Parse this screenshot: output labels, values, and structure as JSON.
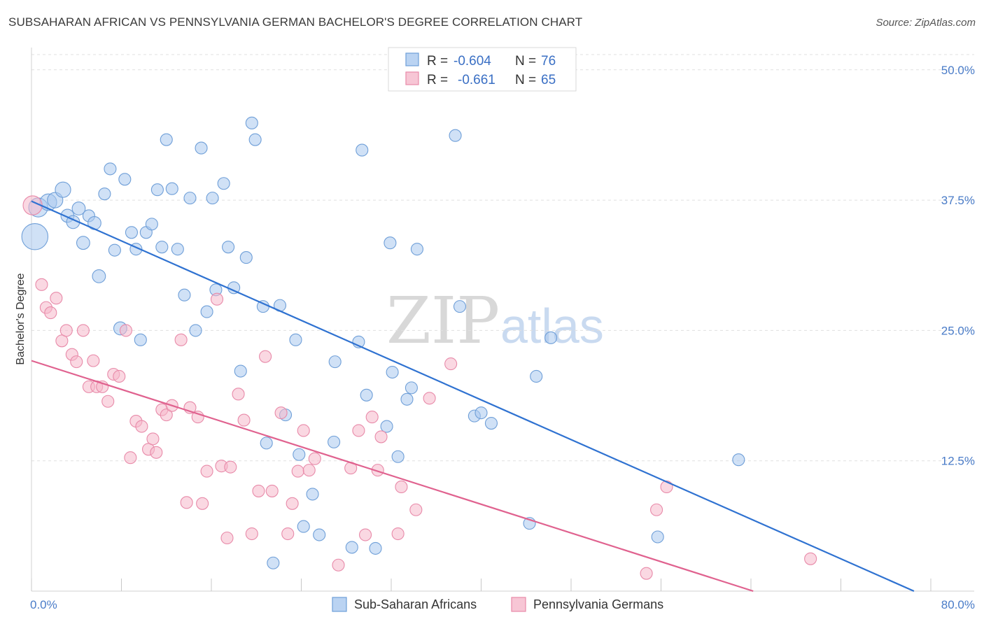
{
  "header": {
    "title": "SUBSAHARAN AFRICAN VS PENNSYLVANIA GERMAN BACHELOR'S DEGREE CORRELATION CHART",
    "source": "Source: ZipAtlas.com"
  },
  "watermark": {
    "zip": "ZIP",
    "atlas": "atlas"
  },
  "legend": {
    "r_label": "R =",
    "n_label": "N =",
    "entries": [
      {
        "r": "-0.604",
        "n": "76",
        "color": "#a9c8ef"
      },
      {
        "r": "-0.661",
        "n": "65",
        "color": "#f5b8cb"
      }
    ]
  },
  "bottom_legend": {
    "items": [
      {
        "label": "Sub-Saharan Africans",
        "color": "#a9c8ef"
      },
      {
        "label": "Pennsylvania Germans",
        "color": "#f5b8cb"
      }
    ]
  },
  "colors": {
    "blue_fill": "#a9c8ef",
    "blue_stroke": "#6f9fd8",
    "blue_line": "#2f72d1",
    "pink_fill": "#f5b8cb",
    "pink_stroke": "#e88aa9",
    "pink_line": "#e0628f",
    "grid": "#e0e0e0",
    "tick_label": "#4a7cc8"
  },
  "chart_data": {
    "type": "scatter",
    "title": "SUBSAHARAN AFRICAN VS PENNSYLVANIA GERMAN BACHELOR'S DEGREE CORRELATION CHART",
    "xlabel": "",
    "ylabel": "Bachelor's Degree",
    "xlim": [
      0,
      80
    ],
    "ylim": [
      0,
      52
    ],
    "x_tick_labels": [
      "0.0%",
      "80.0%"
    ],
    "y_ticks": [
      12.5,
      25.0,
      37.5,
      50.0
    ],
    "y_tick_labels": [
      "12.5%",
      "25.0%",
      "37.5%",
      "50.0%"
    ],
    "grid": true,
    "legend_position": "top-center",
    "series": [
      {
        "name": "Sub-Saharan Africans",
        "trend": {
          "x": [
            0,
            78.5
          ],
          "y": [
            37.4,
            0
          ]
        },
        "points": [
          {
            "x": 0.3,
            "y": 34.0,
            "s": 2.2
          },
          {
            "x": 0.6,
            "y": 36.8,
            "s": 1.6
          },
          {
            "x": 1.5,
            "y": 37.3,
            "s": 1.4
          },
          {
            "x": 2.1,
            "y": 37.5,
            "s": 1.3
          },
          {
            "x": 2.8,
            "y": 38.5,
            "s": 1.3
          },
          {
            "x": 3.2,
            "y": 36.0,
            "s": 1.1
          },
          {
            "x": 3.7,
            "y": 35.4,
            "s": 1.1
          },
          {
            "x": 4.2,
            "y": 36.7,
            "s": 1.1
          },
          {
            "x": 4.6,
            "y": 33.4,
            "s": 1.1
          },
          {
            "x": 5.1,
            "y": 36.0,
            "s": 1.0
          },
          {
            "x": 5.6,
            "y": 35.3,
            "s": 1.1
          },
          {
            "x": 6.0,
            "y": 30.2,
            "s": 1.1
          },
          {
            "x": 6.5,
            "y": 38.1,
            "s": 1.0
          },
          {
            "x": 7.0,
            "y": 40.5,
            "s": 1.0
          },
          {
            "x": 7.4,
            "y": 32.7,
            "s": 1.0
          },
          {
            "x": 7.9,
            "y": 25.2,
            "s": 1.1
          },
          {
            "x": 8.3,
            "y": 39.5,
            "s": 1.0
          },
          {
            "x": 8.9,
            "y": 34.4,
            "s": 1.0
          },
          {
            "x": 9.3,
            "y": 32.8,
            "s": 1.0
          },
          {
            "x": 9.7,
            "y": 24.1,
            "s": 1.0
          },
          {
            "x": 10.2,
            "y": 34.4,
            "s": 1.0
          },
          {
            "x": 10.7,
            "y": 35.2,
            "s": 1.0
          },
          {
            "x": 11.2,
            "y": 38.5,
            "s": 1.0
          },
          {
            "x": 11.6,
            "y": 33.0,
            "s": 1.0
          },
          {
            "x": 12.0,
            "y": 43.3,
            "s": 1.0
          },
          {
            "x": 12.5,
            "y": 38.6,
            "s": 1.0
          },
          {
            "x": 13.0,
            "y": 32.8,
            "s": 1.0
          },
          {
            "x": 13.6,
            "y": 28.4,
            "s": 1.0
          },
          {
            "x": 14.1,
            "y": 37.7,
            "s": 1.0
          },
          {
            "x": 14.6,
            "y": 25.0,
            "s": 1.0
          },
          {
            "x": 15.1,
            "y": 42.5,
            "s": 1.0
          },
          {
            "x": 15.6,
            "y": 26.8,
            "s": 1.0
          },
          {
            "x": 16.1,
            "y": 37.7,
            "s": 1.0
          },
          {
            "x": 16.4,
            "y": 28.9,
            "s": 1.0
          },
          {
            "x": 17.1,
            "y": 39.1,
            "s": 1.0
          },
          {
            "x": 17.5,
            "y": 33.0,
            "s": 1.0
          },
          {
            "x": 18.0,
            "y": 29.1,
            "s": 1.0
          },
          {
            "x": 18.6,
            "y": 21.1,
            "s": 1.0
          },
          {
            "x": 19.1,
            "y": 32.0,
            "s": 1.0
          },
          {
            "x": 19.6,
            "y": 44.9,
            "s": 1.0
          },
          {
            "x": 19.9,
            "y": 43.3,
            "s": 1.0
          },
          {
            "x": 20.6,
            "y": 27.3,
            "s": 1.0
          },
          {
            "x": 20.9,
            "y": 14.2,
            "s": 1.0
          },
          {
            "x": 21.5,
            "y": 2.7,
            "s": 1.0
          },
          {
            "x": 22.1,
            "y": 27.4,
            "s": 1.0
          },
          {
            "x": 22.6,
            "y": 16.9,
            "s": 1.0
          },
          {
            "x": 23.5,
            "y": 24.1,
            "s": 1.0
          },
          {
            "x": 23.8,
            "y": 13.1,
            "s": 1.0
          },
          {
            "x": 24.2,
            "y": 6.2,
            "s": 1.0
          },
          {
            "x": 25.0,
            "y": 9.3,
            "s": 1.0
          },
          {
            "x": 25.6,
            "y": 5.4,
            "s": 1.0
          },
          {
            "x": 26.9,
            "y": 14.3,
            "s": 1.0
          },
          {
            "x": 27.0,
            "y": 22.0,
            "s": 1.0
          },
          {
            "x": 28.5,
            "y": 4.2,
            "s": 1.0
          },
          {
            "x": 29.1,
            "y": 23.9,
            "s": 1.0
          },
          {
            "x": 29.4,
            "y": 42.3,
            "s": 1.0
          },
          {
            "x": 29.8,
            "y": 18.8,
            "s": 1.0
          },
          {
            "x": 30.6,
            "y": 4.1,
            "s": 1.0
          },
          {
            "x": 31.6,
            "y": 15.8,
            "s": 1.0
          },
          {
            "x": 31.9,
            "y": 33.4,
            "s": 1.0
          },
          {
            "x": 32.1,
            "y": 21.0,
            "s": 1.0
          },
          {
            "x": 32.6,
            "y": 12.9,
            "s": 1.0
          },
          {
            "x": 33.4,
            "y": 18.4,
            "s": 1.0
          },
          {
            "x": 33.8,
            "y": 19.5,
            "s": 1.0
          },
          {
            "x": 34.3,
            "y": 32.8,
            "s": 1.0
          },
          {
            "x": 37.7,
            "y": 43.7,
            "s": 1.0
          },
          {
            "x": 38.1,
            "y": 27.3,
            "s": 1.0
          },
          {
            "x": 39.4,
            "y": 16.8,
            "s": 1.0
          },
          {
            "x": 40.0,
            "y": 17.1,
            "s": 1.0
          },
          {
            "x": 40.9,
            "y": 16.1,
            "s": 1.0
          },
          {
            "x": 44.3,
            "y": 6.5,
            "s": 1.0
          },
          {
            "x": 44.9,
            "y": 20.6,
            "s": 1.0
          },
          {
            "x": 46.2,
            "y": 24.3,
            "s": 1.0
          },
          {
            "x": 55.7,
            "y": 5.2,
            "s": 1.0
          },
          {
            "x": 62.9,
            "y": 12.6,
            "s": 1.0
          }
        ]
      },
      {
        "name": "Pennsylvania Germans",
        "trend": {
          "x": [
            0,
            64.2
          ],
          "y": [
            22.1,
            0
          ]
        },
        "points": [
          {
            "x": 0.1,
            "y": 37.0,
            "s": 1.6
          },
          {
            "x": 0.9,
            "y": 29.4,
            "s": 1.0
          },
          {
            "x": 1.3,
            "y": 27.2,
            "s": 1.0
          },
          {
            "x": 1.7,
            "y": 26.7,
            "s": 1.0
          },
          {
            "x": 2.2,
            "y": 28.1,
            "s": 1.0
          },
          {
            "x": 2.7,
            "y": 24.0,
            "s": 1.0
          },
          {
            "x": 3.1,
            "y": 25.0,
            "s": 1.0
          },
          {
            "x": 3.6,
            "y": 22.7,
            "s": 1.0
          },
          {
            "x": 4.0,
            "y": 22.0,
            "s": 1.0
          },
          {
            "x": 4.6,
            "y": 25.0,
            "s": 1.0
          },
          {
            "x": 5.1,
            "y": 19.6,
            "s": 1.0
          },
          {
            "x": 5.5,
            "y": 22.1,
            "s": 1.0
          },
          {
            "x": 5.8,
            "y": 19.6,
            "s": 1.0
          },
          {
            "x": 6.3,
            "y": 19.6,
            "s": 1.0
          },
          {
            "x": 6.8,
            "y": 18.2,
            "s": 1.0
          },
          {
            "x": 7.3,
            "y": 20.8,
            "s": 1.0
          },
          {
            "x": 7.8,
            "y": 20.6,
            "s": 1.0
          },
          {
            "x": 8.4,
            "y": 25.0,
            "s": 1.0
          },
          {
            "x": 8.8,
            "y": 12.8,
            "s": 1.0
          },
          {
            "x": 9.3,
            "y": 16.3,
            "s": 1.0
          },
          {
            "x": 9.8,
            "y": 15.8,
            "s": 1.0
          },
          {
            "x": 10.4,
            "y": 13.6,
            "s": 1.0
          },
          {
            "x": 10.8,
            "y": 14.6,
            "s": 1.0
          },
          {
            "x": 11.1,
            "y": 13.3,
            "s": 1.0
          },
          {
            "x": 11.6,
            "y": 17.4,
            "s": 1.0
          },
          {
            "x": 12.0,
            "y": 16.9,
            "s": 1.0
          },
          {
            "x": 12.5,
            "y": 17.8,
            "s": 1.0
          },
          {
            "x": 13.3,
            "y": 24.1,
            "s": 1.0
          },
          {
            "x": 13.8,
            "y": 8.5,
            "s": 1.0
          },
          {
            "x": 14.1,
            "y": 17.6,
            "s": 1.0
          },
          {
            "x": 14.8,
            "y": 16.7,
            "s": 1.0
          },
          {
            "x": 15.2,
            "y": 8.4,
            "s": 1.0
          },
          {
            "x": 15.6,
            "y": 11.5,
            "s": 1.0
          },
          {
            "x": 16.5,
            "y": 28.0,
            "s": 1.0
          },
          {
            "x": 16.9,
            "y": 12.0,
            "s": 1.0
          },
          {
            "x": 17.4,
            "y": 5.1,
            "s": 1.0
          },
          {
            "x": 17.7,
            "y": 11.9,
            "s": 1.0
          },
          {
            "x": 18.4,
            "y": 18.9,
            "s": 1.0
          },
          {
            "x": 18.9,
            "y": 16.4,
            "s": 1.0
          },
          {
            "x": 19.6,
            "y": 5.5,
            "s": 1.0
          },
          {
            "x": 20.2,
            "y": 9.6,
            "s": 1.0
          },
          {
            "x": 20.8,
            "y": 22.5,
            "s": 1.0
          },
          {
            "x": 21.4,
            "y": 9.6,
            "s": 1.0
          },
          {
            "x": 22.2,
            "y": 17.1,
            "s": 1.0
          },
          {
            "x": 22.8,
            "y": 5.5,
            "s": 1.0
          },
          {
            "x": 23.2,
            "y": 8.4,
            "s": 1.0
          },
          {
            "x": 23.7,
            "y": 11.5,
            "s": 1.0
          },
          {
            "x": 24.2,
            "y": 15.4,
            "s": 1.0
          },
          {
            "x": 24.7,
            "y": 11.6,
            "s": 1.0
          },
          {
            "x": 25.2,
            "y": 12.7,
            "s": 1.0
          },
          {
            "x": 27.3,
            "y": 2.5,
            "s": 1.0
          },
          {
            "x": 28.4,
            "y": 11.8,
            "s": 1.0
          },
          {
            "x": 29.1,
            "y": 15.4,
            "s": 1.0
          },
          {
            "x": 29.7,
            "y": 5.4,
            "s": 1.0
          },
          {
            "x": 30.3,
            "y": 16.7,
            "s": 1.0
          },
          {
            "x": 30.8,
            "y": 11.6,
            "s": 1.0
          },
          {
            "x": 31.1,
            "y": 14.8,
            "s": 1.0
          },
          {
            "x": 32.6,
            "y": 5.5,
            "s": 1.0
          },
          {
            "x": 32.9,
            "y": 10.0,
            "s": 1.0
          },
          {
            "x": 34.2,
            "y": 7.8,
            "s": 1.0
          },
          {
            "x": 35.4,
            "y": 18.5,
            "s": 1.0
          },
          {
            "x": 37.3,
            "y": 21.8,
            "s": 1.0
          },
          {
            "x": 54.7,
            "y": 1.7,
            "s": 1.0
          },
          {
            "x": 55.6,
            "y": 7.8,
            "s": 1.0
          },
          {
            "x": 56.5,
            "y": 10.0,
            "s": 1.0
          },
          {
            "x": 69.3,
            "y": 3.1,
            "s": 1.0
          }
        ]
      }
    ]
  }
}
